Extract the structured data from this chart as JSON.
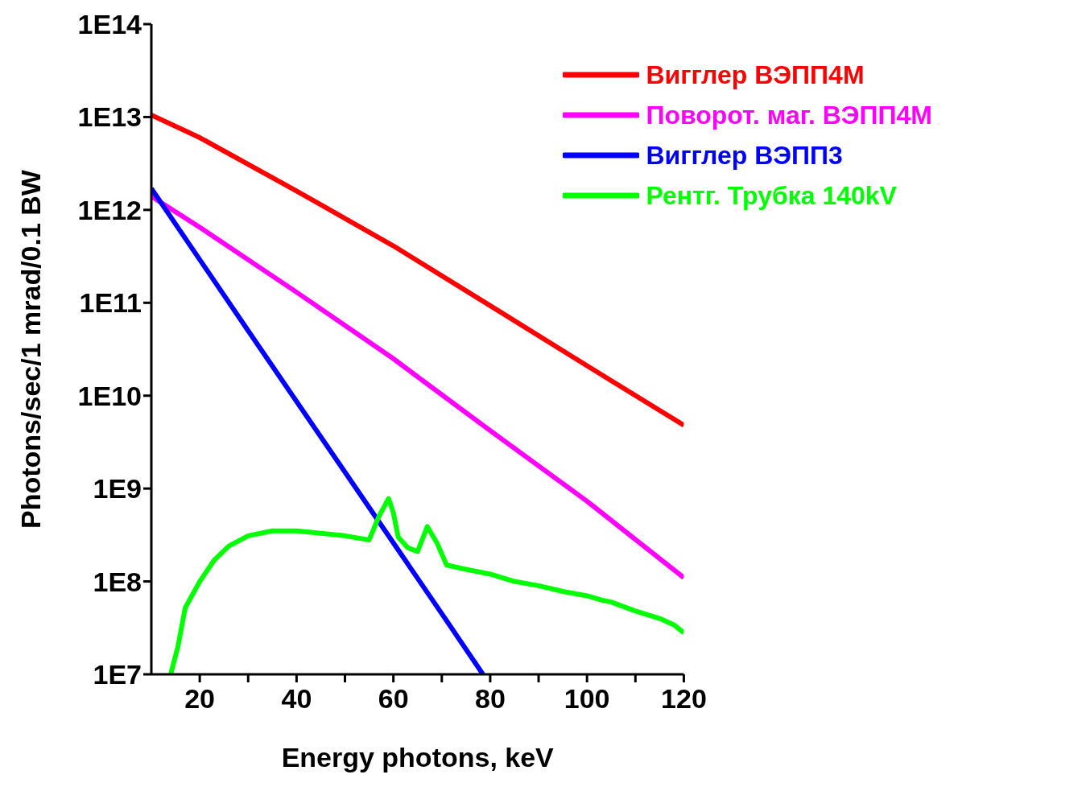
{
  "chart_data": {
    "type": "line",
    "xlabel": "Energy photons, keV",
    "ylabel": "Photons/sec/1 mrad/0.1 BW",
    "log": "y",
    "legend": "top right",
    "xlim": [
      10,
      120
    ],
    "xticks": [
      20,
      {
        "value": 30,
        "label": null
      },
      40,
      {
        "value": 50,
        "label": null
      },
      60,
      {
        "value": 70,
        "label": null
      },
      80,
      {
        "value": 90,
        "label": null
      },
      100,
      {
        "value": 110,
        "label": null
      },
      120
    ],
    "ylim": [
      10000000,
      100000000000000
    ],
    "yticks": [
      {
        "value": 10000000,
        "label": "1E7"
      },
      {
        "value": 100000000,
        "label": "1E8"
      },
      {
        "value": 1000000000,
        "label": "1E9"
      },
      {
        "value": 10000000000,
        "label": "1E10"
      },
      {
        "value": 100000000000,
        "label": "1E11"
      },
      {
        "value": 1000000000000,
        "label": "1E12"
      },
      {
        "value": 10000000000000,
        "label": "1E13"
      },
      {
        "value": 100000000000000,
        "label": "1E14"
      }
    ],
    "series": [
      {
        "name": "Вигглер ВЭПП4М",
        "color": "#ff0000",
        "x": [
          10,
          20,
          40,
          60,
          80,
          100,
          120
        ],
        "values": [
          10500000000000,
          6000000000000,
          1600000000000,
          410000000000,
          93000000000,
          21000000000,
          4800000000
        ]
      },
      {
        "name": "Поворот. маг. ВЭПП4М",
        "color": "#ff00ff",
        "x": [
          10,
          20,
          40,
          60,
          80,
          100,
          120
        ],
        "values": [
          1400000000000,
          650000000000,
          130000000000,
          25000000000,
          4200000000,
          730000000,
          110000000
        ]
      },
      {
        "name": "Вигглер ВЭПП3",
        "color": "#0000ff",
        "x": [
          10,
          30,
          50,
          70,
          78.5
        ],
        "values": [
          1700000000000,
          50000000000,
          1500000000,
          45000000,
          10000000
        ]
      },
      {
        "name": "Рентг. Трубка 140kV",
        "color": "#00ff00",
        "x": [
          14,
          15.5,
          17,
          20,
          23,
          26,
          30,
          35,
          40,
          45,
          50,
          55,
          57,
          59,
          60,
          61,
          63,
          65,
          67,
          69,
          71,
          75,
          80,
          85,
          90,
          95,
          100,
          103,
          105,
          110,
          115,
          118,
          120
        ],
        "values": [
          10000000,
          20000000,
          52000000,
          100000000,
          170000000,
          240000000,
          310000000,
          350000000,
          350000000,
          330000000,
          310000000,
          280000000,
          500000000,
          780000000,
          550000000,
          300000000,
          230000000,
          210000000,
          390000000,
          260000000,
          150000000,
          135000000,
          120000000,
          100000000,
          90000000,
          78000000,
          70000000,
          63000000,
          60000000,
          48000000,
          40000000,
          34000000,
          28000000
        ]
      }
    ]
  }
}
